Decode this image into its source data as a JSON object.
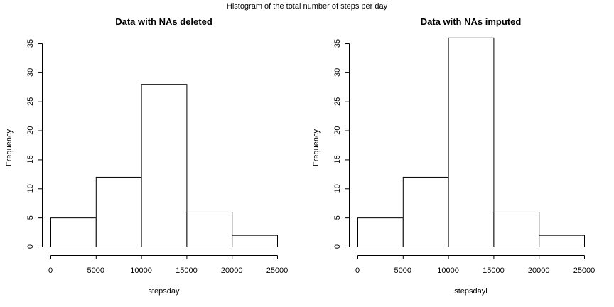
{
  "figure": {
    "suptitle": "Histogram of the total number of steps per day"
  },
  "chart_data": [
    {
      "type": "bar",
      "title": "Data with NAs deleted",
      "xlabel": "stepsday",
      "ylabel": "Frequency",
      "bins": [
        [
          0,
          5000
        ],
        [
          5000,
          10000
        ],
        [
          10000,
          15000
        ],
        [
          15000,
          20000
        ],
        [
          20000,
          25000
        ]
      ],
      "values": [
        5,
        12,
        28,
        6,
        2
      ],
      "xlim": [
        0,
        25000
      ],
      "ylim": [
        0,
        35
      ],
      "xticks": [
        0,
        5000,
        10000,
        15000,
        20000,
        25000
      ],
      "yticks": [
        0,
        5,
        10,
        15,
        20,
        25,
        30,
        35
      ],
      "grid": false
    },
    {
      "type": "bar",
      "title": "Data with NAs imputed",
      "xlabel": "stepsdayi",
      "ylabel": "Frequency",
      "bins": [
        [
          0,
          5000
        ],
        [
          5000,
          10000
        ],
        [
          10000,
          15000
        ],
        [
          15000,
          20000
        ],
        [
          20000,
          25000
        ]
      ],
      "values": [
        5,
        12,
        36,
        6,
        2
      ],
      "xlim": [
        0,
        25000
      ],
      "ylim": [
        0,
        35
      ],
      "xticks": [
        0,
        5000,
        10000,
        15000,
        20000,
        25000
      ],
      "yticks": [
        0,
        5,
        10,
        15,
        20,
        25,
        30,
        35
      ],
      "grid": false
    }
  ]
}
